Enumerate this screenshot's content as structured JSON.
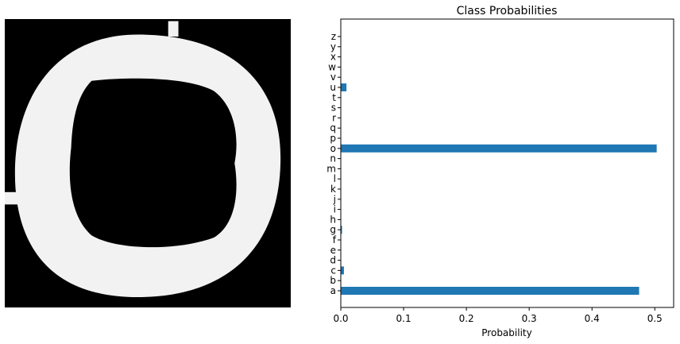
{
  "chart_data": [
    {
      "type": "image",
      "description_colors": {
        "background": "#000000",
        "foreground": "#f2f2f2"
      }
    },
    {
      "type": "bar",
      "orientation": "horizontal",
      "title": "Class Probabilities",
      "xlabel": "Probability",
      "ylabel": "",
      "xlim": [
        0,
        0.53
      ],
      "xticks": [
        "0.0",
        "0.1",
        "0.2",
        "0.3",
        "0.4",
        "0.5"
      ],
      "xtick_values": [
        0,
        0.1,
        0.2,
        0.3,
        0.4,
        0.5
      ],
      "categories": [
        "a",
        "b",
        "c",
        "d",
        "e",
        "f",
        "g",
        "h",
        "i",
        "j",
        "k",
        "l",
        "m",
        "n",
        "o",
        "p",
        "q",
        "r",
        "s",
        "t",
        "u",
        "v",
        "w",
        "x",
        "y",
        "z"
      ],
      "values": [
        0.475,
        0.0,
        0.005,
        0.0,
        0.0,
        0.0,
        0.002,
        0.0,
        0.0,
        0.0,
        0.0,
        0.0,
        0.0,
        0.0,
        0.503,
        0.0,
        0.0,
        0.0,
        0.0,
        0.0,
        0.009,
        0.0,
        0.0,
        0.0,
        0.0,
        0.0
      ],
      "bar_color": "#1f77b4",
      "grid": false,
      "legend": "none"
    }
  ]
}
